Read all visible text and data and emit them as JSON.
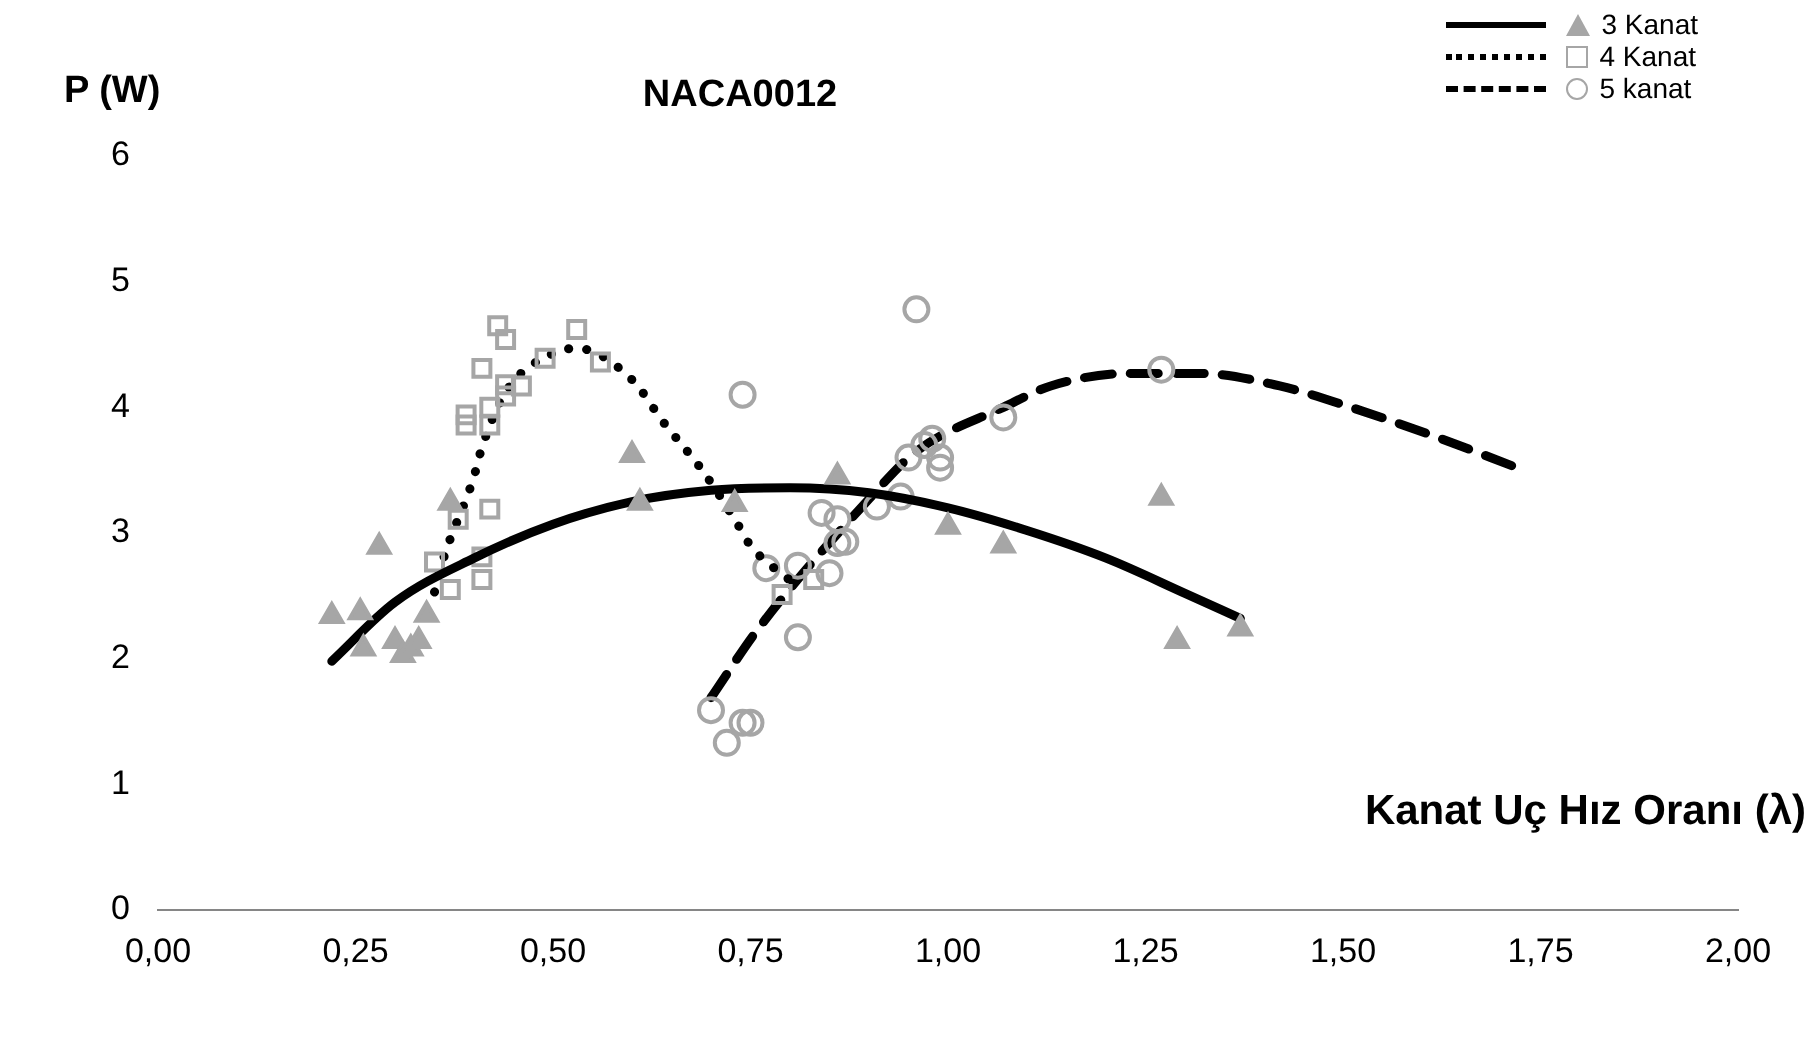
{
  "chart_data": {
    "type": "scatter",
    "title": "NACA0012",
    "xlabel": "Kanat Uç Hız Oranı (λ)",
    "ylabel": "P (W)",
    "xlim": [
      0,
      2
    ],
    "xticks": [
      {
        "value": 0,
        "label": "0,00"
      },
      {
        "value": 0.25,
        "label": "0,25"
      },
      {
        "value": 0.5,
        "label": "0,50"
      },
      {
        "value": 0.75,
        "label": "0,75"
      },
      {
        "value": 1,
        "label": "1,00"
      },
      {
        "value": 1.25,
        "label": "1,25"
      },
      {
        "value": 1.5,
        "label": "1,50"
      },
      {
        "value": 1.75,
        "label": "1,75"
      },
      {
        "value": 2,
        "label": "2,00"
      }
    ],
    "ylim": [
      0,
      6
    ],
    "yticks": [
      0,
      1,
      2,
      3,
      4,
      5,
      6
    ],
    "grid": false,
    "legend": "top right",
    "series": [
      {
        "name": "3 Kanat",
        "type": "scatter",
        "marker": "triangle",
        "color": "#a6a6a6",
        "x": [
          0.22,
          0.256,
          0.28,
          0.26,
          0.3,
          0.31,
          0.32,
          0.33,
          0.34,
          0.37,
          0.6,
          0.61,
          0.73,
          0.86,
          1.0,
          1.07,
          1.27,
          1.29,
          1.37
        ],
        "values": [
          2.34,
          2.37,
          2.89,
          2.08,
          2.14,
          2.03,
          2.08,
          2.14,
          2.35,
          3.24,
          3.62,
          3.24,
          3.23,
          3.45,
          3.05,
          2.9,
          3.28,
          2.14,
          2.24
        ]
      },
      {
        "type": "line",
        "marker": "none",
        "line_style": "solid",
        "color": "#000000",
        "x": [
          0.22,
          0.3,
          0.4,
          0.5,
          0.6,
          0.7,
          0.8,
          0.9,
          1.0,
          1.1,
          1.2,
          1.3,
          1.37
        ],
        "values": [
          1.98,
          2.45,
          2.8,
          3.07,
          3.25,
          3.34,
          3.36,
          3.32,
          3.2,
          3.02,
          2.8,
          2.52,
          2.32
        ]
      },
      {
        "name": "4 Kanat",
        "type": "scatter",
        "marker": "square",
        "color": "#a6a6a6",
        "x": [
          0.43,
          0.44,
          0.53,
          0.56,
          0.49,
          0.41,
          0.44,
          0.46,
          0.44,
          0.39,
          0.39,
          0.42,
          0.42,
          0.42,
          0.38,
          0.35,
          0.41,
          0.41,
          0.37,
          0.79,
          0.83
        ],
        "values": [
          4.65,
          4.54,
          4.62,
          4.36,
          4.39,
          4.31,
          4.18,
          4.17,
          4.09,
          3.94,
          3.86,
          4.0,
          3.86,
          3.19,
          3.11,
          2.77,
          2.81,
          2.63,
          2.55,
          2.51,
          2.63
        ]
      },
      {
        "type": "line",
        "marker": "none",
        "line_style": "dotted",
        "color": "#000000",
        "x": [
          0.35,
          0.36,
          0.4,
          0.41,
          0.44,
          0.5,
          0.53,
          0.6,
          0.64,
          0.69,
          0.73,
          0.75,
          0.78,
          0.81
        ],
        "values": [
          2.53,
          2.77,
          3.45,
          3.68,
          4.12,
          4.43,
          4.47,
          4.22,
          3.88,
          3.49,
          3.11,
          2.9,
          2.72,
          2.58
        ]
      },
      {
        "name": "5 kanat",
        "type": "scatter",
        "marker": "circle",
        "color": "#a6a6a6",
        "x": [
          0.74,
          0.7,
          0.72,
          0.74,
          0.75,
          0.96,
          1.27,
          1.07,
          0.98,
          0.97,
          0.95,
          0.99,
          0.99,
          0.94,
          0.91,
          0.84,
          0.86,
          0.87,
          0.86,
          0.81,
          0.85,
          0.81,
          0.77
        ],
        "values": [
          4.1,
          1.59,
          1.33,
          1.49,
          1.49,
          4.78,
          4.3,
          3.92,
          3.75,
          3.7,
          3.6,
          3.6,
          3.52,
          3.29,
          3.21,
          3.16,
          3.11,
          2.93,
          2.92,
          2.74,
          2.68,
          2.17,
          2.72
        ]
      },
      {
        "type": "line",
        "marker": "none",
        "line_style": "dashed",
        "color": "#000000",
        "x": [
          0.7,
          0.76,
          0.9,
          0.96,
          1.07,
          1.13,
          1.23,
          1.32,
          1.42,
          1.51,
          1.62,
          1.72
        ],
        "values": [
          1.69,
          2.24,
          3.27,
          3.65,
          4.0,
          4.17,
          4.27,
          4.27,
          4.17,
          4.0,
          3.76,
          3.52
        ]
      }
    ]
  }
}
